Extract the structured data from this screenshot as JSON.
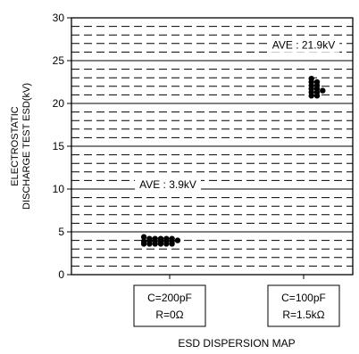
{
  "chart_data": {
    "type": "scatter",
    "ylabel_lines": [
      "ELECTROSTATIC",
      "DISCHARGE TEST ESD(kV)"
    ],
    "xlabel": "ESD DISPERSION MAP",
    "ylim": [
      0,
      30
    ],
    "yticks": [
      0,
      5,
      10,
      15,
      20,
      25,
      30
    ],
    "major_grid_step": 5,
    "minor_grid_step": 1,
    "categories": [
      {
        "lines": [
          "C=200pF",
          "R=0Ω"
        ]
      },
      {
        "lines": [
          "C=100pF",
          "R=1.5kΩ"
        ]
      }
    ],
    "series": [
      {
        "category": 0,
        "points": [
          {
            "offset": -3,
            "y": 4.4
          },
          {
            "offset": -2,
            "y": 4.2
          },
          {
            "offset": -1,
            "y": 4.2
          },
          {
            "offset": 0,
            "y": 4.2
          },
          {
            "offset": 1,
            "y": 4.2
          },
          {
            "offset": 2,
            "y": 4.2
          },
          {
            "offset": -3,
            "y": 3.9
          },
          {
            "offset": -2,
            "y": 3.9
          },
          {
            "offset": -1,
            "y": 3.9
          },
          {
            "offset": 0,
            "y": 3.9
          },
          {
            "offset": 1,
            "y": 3.9
          },
          {
            "offset": 2,
            "y": 3.9
          },
          {
            "offset": 3,
            "y": 4.0
          },
          {
            "offset": -3,
            "y": 3.6
          },
          {
            "offset": -2,
            "y": 3.6
          },
          {
            "offset": -1,
            "y": 3.6
          },
          {
            "offset": 0,
            "y": 3.6
          },
          {
            "offset": 1,
            "y": 3.6
          },
          {
            "offset": 2,
            "y": 3.6
          }
        ]
      },
      {
        "category": 1,
        "points": [
          {
            "offset": -1,
            "y": 22.9
          },
          {
            "offset": -1,
            "y": 22.5
          },
          {
            "offset": 0,
            "y": 22.5
          },
          {
            "offset": -1,
            "y": 22.1
          },
          {
            "offset": 0,
            "y": 22.1
          },
          {
            "offset": -1,
            "y": 21.7
          },
          {
            "offset": 0,
            "y": 21.7
          },
          {
            "offset": 1,
            "y": 21.5
          },
          {
            "offset": -1,
            "y": 21.3
          },
          {
            "offset": 0,
            "y": 21.3
          },
          {
            "offset": -1,
            "y": 20.9
          },
          {
            "offset": 0,
            "y": 20.9
          }
        ]
      }
    ],
    "annotations": [
      {
        "text": "AVE : 3.9kV",
        "category": 0,
        "y": 10.5
      },
      {
        "text": "AVE : 21.9kV",
        "category": 1,
        "y": 26.8
      }
    ],
    "colors": {
      "points": "#000000",
      "grid": "#000000",
      "axis": "#000000"
    }
  }
}
